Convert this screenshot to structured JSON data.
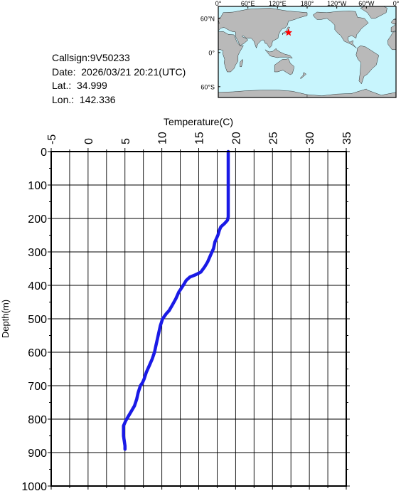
{
  "info": {
    "callsign": "Callsign:9V50233",
    "date": "Date:  2026/03/21 20:21(UTC)",
    "lat": "Lat.:  34.999",
    "lon": "Lon.:  142.336"
  },
  "map": {
    "lon_labels": [
      "0°",
      "60°E",
      "120°E",
      "180°",
      "120°W",
      "60°W",
      "0°"
    ],
    "lat_labels": [
      "60°N",
      "0°",
      "60°S"
    ],
    "marker": {
      "lon": 142.336,
      "lat": 34.999
    },
    "colors": {
      "ocean": "#c8f5fd",
      "land": "#b9b9b9",
      "marker": "#ff0000"
    }
  },
  "chart_data": {
    "type": "line",
    "xlabel": "Temperature(C)",
    "ylabel": "Depth(m)",
    "xlim": [
      -5,
      35
    ],
    "ylim": [
      0,
      1000
    ],
    "y_inverted": true,
    "x_axis_position": "top",
    "grid": true,
    "x_ticks": [
      "-5",
      "0",
      "5",
      "10",
      "15",
      "20",
      "25",
      "30",
      "35"
    ],
    "y_ticks": [
      "0",
      "100",
      "200",
      "300",
      "400",
      "500",
      "600",
      "700",
      "800",
      "900",
      "1000"
    ],
    "line_color": "#1a1ae6",
    "series": [
      {
        "x": [
          19.0,
          19.0,
          19.0,
          19.0,
          18.9,
          18.5,
          18.0,
          17.8,
          17.6,
          17.2,
          17.0,
          16.6,
          16.2,
          15.8,
          15.3,
          14.6,
          13.8,
          13.3,
          12.9,
          12.6,
          12.3,
          11.9,
          11.4,
          11.0,
          10.6,
          10.1,
          9.8,
          9.6,
          9.4,
          9.2,
          9.0,
          8.7,
          8.3,
          7.9,
          7.6,
          7.4,
          7.1,
          6.8,
          6.6,
          6.3,
          5.9,
          5.5,
          5.1,
          4.8,
          4.8,
          5.0,
          5.0
        ],
        "y": [
          0,
          50,
          100,
          195,
          205,
          215,
          225,
          235,
          250,
          270,
          290,
          310,
          330,
          345,
          360,
          368,
          375,
          385,
          400,
          410,
          420,
          440,
          460,
          475,
          485,
          500,
          520,
          540,
          560,
          580,
          600,
          620,
          640,
          660,
          680,
          690,
          700,
          720,
          740,
          760,
          775,
          790,
          805,
          820,
          850,
          880,
          890
        ]
      }
    ]
  }
}
